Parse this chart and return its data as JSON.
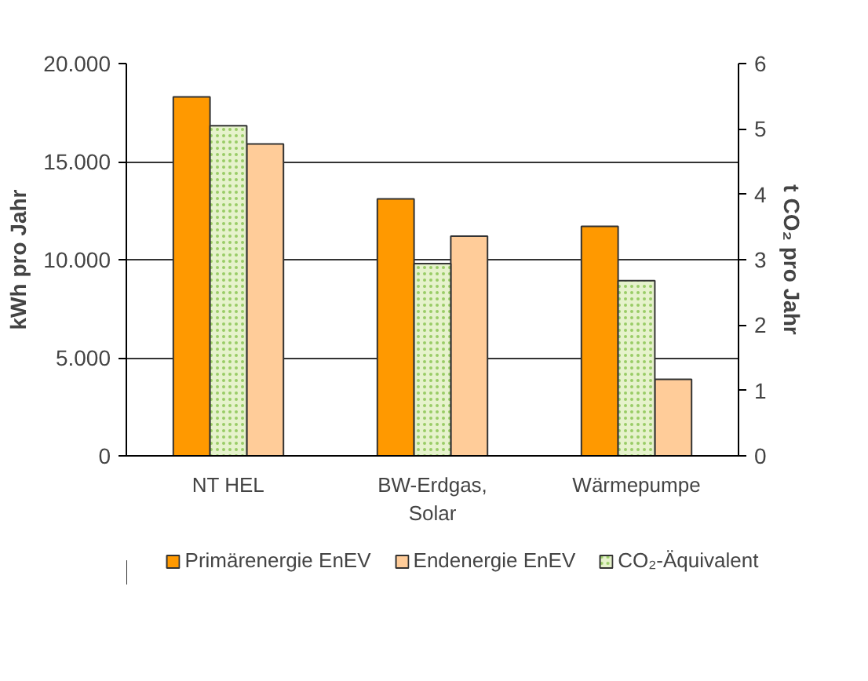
{
  "chart_data": {
    "type": "bar",
    "categories": [
      "NT HEL",
      "BW-Erdgas, Solar",
      "Wärmepumpe"
    ],
    "ylabel": "kWh pro Jahr",
    "y2label": "t CO₂ pro Jahr",
    "ylim": [
      0,
      20000
    ],
    "yticks": [
      0,
      {
        "value": 5000,
        "label": "5.000"
      },
      {
        "value": 10000,
        "label": "10.000"
      },
      {
        "value": 15000,
        "label": "15.000"
      },
      {
        "value": 20000,
        "label": "20.000"
      }
    ],
    "y2lim": [
      0,
      6
    ],
    "y2ticks": [
      0,
      1,
      2,
      3,
      4,
      5,
      6
    ],
    "grid": "y",
    "legend": "bottom",
    "series": [
      {
        "name": "Primärenergie EnEV",
        "color": "#ff9900",
        "values": [
          18300,
          13100,
          11700
        ]
      },
      {
        "name": "Endenergie EnEV",
        "color": "#ffcc99",
        "values": [
          15900,
          11200,
          3900
        ]
      },
      {
        "name": "CO₂-Äquivalent",
        "color": "#e6f2cc",
        "axis": "y2",
        "values": [
          5.05,
          2.94,
          2.68
        ]
      }
    ]
  }
}
